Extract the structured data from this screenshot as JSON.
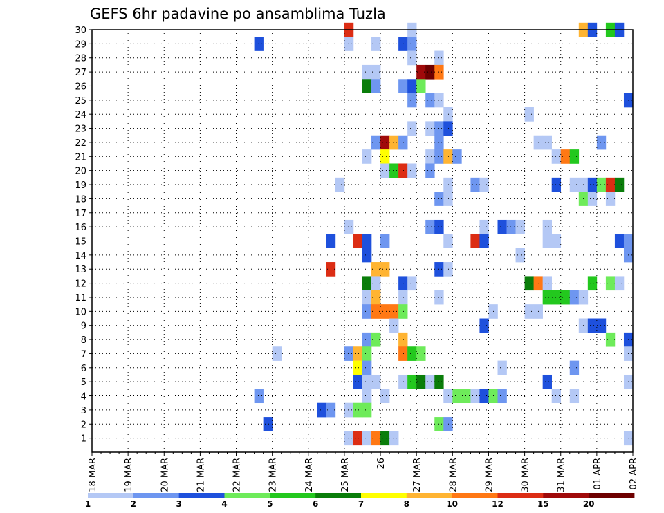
{
  "chart_data": {
    "type": "heatmap",
    "title": "GEFS 6hr padavine po ansamblima Tuzla",
    "ylabels": [
      "1",
      "2",
      "3",
      "4",
      "5",
      "6",
      "7",
      "8",
      "9",
      "10",
      "11",
      "12",
      "13",
      "14",
      "15",
      "16",
      "17",
      "18",
      "19",
      "20",
      "21",
      "22",
      "23",
      "24",
      "25",
      "26",
      "27",
      "28",
      "29",
      "30"
    ],
    "xlabels": [
      "18 MAR",
      "19 MAR",
      "20 MAR",
      "21 MAR",
      "22 MAR",
      "23 MAR",
      "24 MAR",
      "25 MAR",
      "26",
      "27 MAR",
      "28 MAR",
      "29 MAR",
      "30 MAR",
      "31 MAR",
      "01 APR",
      "02 APR"
    ],
    "xlim": [
      0,
      60
    ],
    "ylim": [
      0,
      30
    ],
    "grid": true,
    "legend": {
      "boundaries": [
        "1",
        "2",
        "3",
        "4",
        "5",
        "6",
        "7",
        "8",
        "10",
        "12",
        "15",
        "20"
      ],
      "colors": [
        "#b4c8f5",
        "#6e96f0",
        "#1e50dc",
        "#6eeb5a",
        "#23c81e",
        "#0a7d0a",
        "#ffff00",
        "#ffb432",
        "#ff7814",
        "#dc2d14",
        "#a00a0a",
        "#6e0000"
      ],
      "placement": "bottom"
    },
    "cells": [
      {
        "x": 28,
        "y": 30,
        "c": 9
      },
      {
        "x": 35,
        "y": 30,
        "c": 0
      },
      {
        "x": 54,
        "y": 30,
        "c": 7
      },
      {
        "x": 55,
        "y": 30,
        "c": 2
      },
      {
        "x": 57,
        "y": 30,
        "c": 4
      },
      {
        "x": 58,
        "y": 30,
        "c": 2
      },
      {
        "x": 18,
        "y": 29,
        "c": 2
      },
      {
        "x": 28,
        "y": 29,
        "c": 0
      },
      {
        "x": 31,
        "y": 29,
        "c": 0
      },
      {
        "x": 34,
        "y": 29,
        "c": 2
      },
      {
        "x": 35,
        "y": 29,
        "c": 1
      },
      {
        "x": 35,
        "y": 28,
        "c": 0
      },
      {
        "x": 38,
        "y": 28,
        "c": 0
      },
      {
        "x": 30,
        "y": 27,
        "c": 0
      },
      {
        "x": 31,
        "y": 27,
        "c": 0
      },
      {
        "x": 36,
        "y": 27,
        "c": 10
      },
      {
        "x": 37,
        "y": 27,
        "c": 11
      },
      {
        "x": 38,
        "y": 27,
        "c": 8
      },
      {
        "x": 30,
        "y": 26,
        "c": 5
      },
      {
        "x": 31,
        "y": 26,
        "c": 1
      },
      {
        "x": 34,
        "y": 26,
        "c": 1
      },
      {
        "x": 35,
        "y": 26,
        "c": 2
      },
      {
        "x": 36,
        "y": 26,
        "c": 3
      },
      {
        "x": 35,
        "y": 25,
        "c": 1
      },
      {
        "x": 37,
        "y": 25,
        "c": 1
      },
      {
        "x": 38,
        "y": 25,
        "c": 0
      },
      {
        "x": 59,
        "y": 25,
        "c": 2
      },
      {
        "x": 39,
        "y": 24,
        "c": 0
      },
      {
        "x": 48,
        "y": 24,
        "c": 0
      },
      {
        "x": 35,
        "y": 23,
        "c": 0
      },
      {
        "x": 37,
        "y": 23,
        "c": 0
      },
      {
        "x": 38,
        "y": 23,
        "c": 1
      },
      {
        "x": 39,
        "y": 23,
        "c": 2
      },
      {
        "x": 31,
        "y": 22,
        "c": 1
      },
      {
        "x": 32,
        "y": 22,
        "c": 10
      },
      {
        "x": 33,
        "y": 22,
        "c": 7
      },
      {
        "x": 34,
        "y": 22,
        "c": 1
      },
      {
        "x": 38,
        "y": 22,
        "c": 1
      },
      {
        "x": 49,
        "y": 22,
        "c": 0
      },
      {
        "x": 50,
        "y": 22,
        "c": 0
      },
      {
        "x": 56,
        "y": 22,
        "c": 1
      },
      {
        "x": 30,
        "y": 21,
        "c": 0
      },
      {
        "x": 32,
        "y": 21,
        "c": 6
      },
      {
        "x": 37,
        "y": 21,
        "c": 0
      },
      {
        "x": 38,
        "y": 21,
        "c": 1
      },
      {
        "x": 39,
        "y": 21,
        "c": 7
      },
      {
        "x": 40,
        "y": 21,
        "c": 1
      },
      {
        "x": 51,
        "y": 21,
        "c": 0
      },
      {
        "x": 52,
        "y": 21,
        "c": 8
      },
      {
        "x": 53,
        "y": 21,
        "c": 4
      },
      {
        "x": 32,
        "y": 20,
        "c": 0
      },
      {
        "x": 33,
        "y": 20,
        "c": 4
      },
      {
        "x": 34,
        "y": 20,
        "c": 9
      },
      {
        "x": 35,
        "y": 20,
        "c": 0
      },
      {
        "x": 37,
        "y": 20,
        "c": 1
      },
      {
        "x": 27,
        "y": 19,
        "c": 0
      },
      {
        "x": 39,
        "y": 19,
        "c": 0
      },
      {
        "x": 42,
        "y": 19,
        "c": 1
      },
      {
        "x": 43,
        "y": 19,
        "c": 0
      },
      {
        "x": 51,
        "y": 19,
        "c": 2
      },
      {
        "x": 53,
        "y": 19,
        "c": 0
      },
      {
        "x": 54,
        "y": 19,
        "c": 0
      },
      {
        "x": 55,
        "y": 19,
        "c": 2
      },
      {
        "x": 56,
        "y": 19,
        "c": 3
      },
      {
        "x": 57,
        "y": 19,
        "c": 9
      },
      {
        "x": 58,
        "y": 19,
        "c": 5
      },
      {
        "x": 38,
        "y": 18,
        "c": 1
      },
      {
        "x": 39,
        "y": 18,
        "c": 0
      },
      {
        "x": 54,
        "y": 18,
        "c": 3
      },
      {
        "x": 55,
        "y": 18,
        "c": 0
      },
      {
        "x": 57,
        "y": 18,
        "c": 0
      },
      {
        "x": 28,
        "y": 16,
        "c": 0
      },
      {
        "x": 37,
        "y": 16,
        "c": 1
      },
      {
        "x": 38,
        "y": 16,
        "c": 2
      },
      {
        "x": 43,
        "y": 16,
        "c": 0
      },
      {
        "x": 45,
        "y": 16,
        "c": 2
      },
      {
        "x": 46,
        "y": 16,
        "c": 1
      },
      {
        "x": 47,
        "y": 16,
        "c": 0
      },
      {
        "x": 50,
        "y": 16,
        "c": 0
      },
      {
        "x": 26,
        "y": 15,
        "c": 2
      },
      {
        "x": 29,
        "y": 15,
        "c": 9
      },
      {
        "x": 30,
        "y": 15,
        "c": 2
      },
      {
        "x": 32,
        "y": 15,
        "c": 1
      },
      {
        "x": 39,
        "y": 15,
        "c": 0
      },
      {
        "x": 42,
        "y": 15,
        "c": 9
      },
      {
        "x": 43,
        "y": 15,
        "c": 2
      },
      {
        "x": 50,
        "y": 15,
        "c": 0
      },
      {
        "x": 51,
        "y": 15,
        "c": 0
      },
      {
        "x": 58,
        "y": 15,
        "c": 2
      },
      {
        "x": 59,
        "y": 15,
        "c": 1
      },
      {
        "x": 30,
        "y": 14,
        "c": 2
      },
      {
        "x": 47,
        "y": 14,
        "c": 0
      },
      {
        "x": 59,
        "y": 14,
        "c": 1
      },
      {
        "x": 26,
        "y": 13,
        "c": 9
      },
      {
        "x": 31,
        "y": 13,
        "c": 7
      },
      {
        "x": 32,
        "y": 13,
        "c": 7
      },
      {
        "x": 38,
        "y": 13,
        "c": 2
      },
      {
        "x": 39,
        "y": 13,
        "c": 0
      },
      {
        "x": 30,
        "y": 12,
        "c": 5
      },
      {
        "x": 31,
        "y": 12,
        "c": 0
      },
      {
        "x": 34,
        "y": 12,
        "c": 2
      },
      {
        "x": 35,
        "y": 12,
        "c": 0
      },
      {
        "x": 48,
        "y": 12,
        "c": 5
      },
      {
        "x": 49,
        "y": 12,
        "c": 8
      },
      {
        "x": 50,
        "y": 12,
        "c": 0
      },
      {
        "x": 55,
        "y": 12,
        "c": 4
      },
      {
        "x": 57,
        "y": 12,
        "c": 3
      },
      {
        "x": 58,
        "y": 12,
        "c": 0
      },
      {
        "x": 30,
        "y": 11,
        "c": 0
      },
      {
        "x": 31,
        "y": 11,
        "c": 7
      },
      {
        "x": 34,
        "y": 11,
        "c": 0
      },
      {
        "x": 38,
        "y": 11,
        "c": 0
      },
      {
        "x": 50,
        "y": 11,
        "c": 4
      },
      {
        "x": 51,
        "y": 11,
        "c": 4
      },
      {
        "x": 52,
        "y": 11,
        "c": 4
      },
      {
        "x": 53,
        "y": 11,
        "c": 1
      },
      {
        "x": 54,
        "y": 11,
        "c": 0
      },
      {
        "x": 30,
        "y": 10,
        "c": 1
      },
      {
        "x": 31,
        "y": 10,
        "c": 8
      },
      {
        "x": 32,
        "y": 10,
        "c": 8
      },
      {
        "x": 33,
        "y": 10,
        "c": 8
      },
      {
        "x": 34,
        "y": 10,
        "c": 3
      },
      {
        "x": 44,
        "y": 10,
        "c": 0
      },
      {
        "x": 48,
        "y": 10,
        "c": 0
      },
      {
        "x": 49,
        "y": 10,
        "c": 0
      },
      {
        "x": 33,
        "y": 9,
        "c": 0
      },
      {
        "x": 43,
        "y": 9,
        "c": 2
      },
      {
        "x": 54,
        "y": 9,
        "c": 0
      },
      {
        "x": 55,
        "y": 9,
        "c": 2
      },
      {
        "x": 56,
        "y": 9,
        "c": 2
      },
      {
        "x": 30,
        "y": 8,
        "c": 1
      },
      {
        "x": 31,
        "y": 8,
        "c": 3
      },
      {
        "x": 34,
        "y": 8,
        "c": 7
      },
      {
        "x": 57,
        "y": 8,
        "c": 3
      },
      {
        "x": 59,
        "y": 8,
        "c": 2
      },
      {
        "x": 20,
        "y": 7,
        "c": 0
      },
      {
        "x": 28,
        "y": 7,
        "c": 1
      },
      {
        "x": 29,
        "y": 7,
        "c": 7
      },
      {
        "x": 30,
        "y": 7,
        "c": 3
      },
      {
        "x": 34,
        "y": 7,
        "c": 8
      },
      {
        "x": 35,
        "y": 7,
        "c": 4
      },
      {
        "x": 36,
        "y": 7,
        "c": 3
      },
      {
        "x": 59,
        "y": 7,
        "c": 0
      },
      {
        "x": 29,
        "y": 6,
        "c": 6
      },
      {
        "x": 30,
        "y": 6,
        "c": 1
      },
      {
        "x": 45,
        "y": 6,
        "c": 0
      },
      {
        "x": 53,
        "y": 6,
        "c": 1
      },
      {
        "x": 29,
        "y": 5,
        "c": 2
      },
      {
        "x": 30,
        "y": 5,
        "c": 0
      },
      {
        "x": 31,
        "y": 5,
        "c": 0
      },
      {
        "x": 34,
        "y": 5,
        "c": 0
      },
      {
        "x": 35,
        "y": 5,
        "c": 4
      },
      {
        "x": 36,
        "y": 5,
        "c": 5
      },
      {
        "x": 37,
        "y": 5,
        "c": 0
      },
      {
        "x": 38,
        "y": 5,
        "c": 5
      },
      {
        "x": 50,
        "y": 5,
        "c": 2
      },
      {
        "x": 59,
        "y": 5,
        "c": 0
      },
      {
        "x": 18,
        "y": 4,
        "c": 1
      },
      {
        "x": 30,
        "y": 4,
        "c": 0
      },
      {
        "x": 32,
        "y": 4,
        "c": 0
      },
      {
        "x": 39,
        "y": 4,
        "c": 0
      },
      {
        "x": 40,
        "y": 4,
        "c": 3
      },
      {
        "x": 41,
        "y": 4,
        "c": 3
      },
      {
        "x": 42,
        "y": 4,
        "c": 0
      },
      {
        "x": 43,
        "y": 4,
        "c": 2
      },
      {
        "x": 44,
        "y": 4,
        "c": 3
      },
      {
        "x": 45,
        "y": 4,
        "c": 1
      },
      {
        "x": 51,
        "y": 4,
        "c": 0
      },
      {
        "x": 53,
        "y": 4,
        "c": 0
      },
      {
        "x": 25,
        "y": 3,
        "c": 2
      },
      {
        "x": 26,
        "y": 3,
        "c": 1
      },
      {
        "x": 28,
        "y": 3,
        "c": 0
      },
      {
        "x": 29,
        "y": 3,
        "c": 3
      },
      {
        "x": 30,
        "y": 3,
        "c": 3
      },
      {
        "x": 19,
        "y": 2,
        "c": 2
      },
      {
        "x": 38,
        "y": 2,
        "c": 3
      },
      {
        "x": 39,
        "y": 2,
        "c": 1
      },
      {
        "x": 28,
        "y": 1,
        "c": 0
      },
      {
        "x": 29,
        "y": 1,
        "c": 9
      },
      {
        "x": 30,
        "y": 1,
        "c": 0
      },
      {
        "x": 31,
        "y": 1,
        "c": 8
      },
      {
        "x": 32,
        "y": 1,
        "c": 5
      },
      {
        "x": 33,
        "y": 1,
        "c": 0
      },
      {
        "x": 59,
        "y": 1,
        "c": 0
      }
    ]
  }
}
